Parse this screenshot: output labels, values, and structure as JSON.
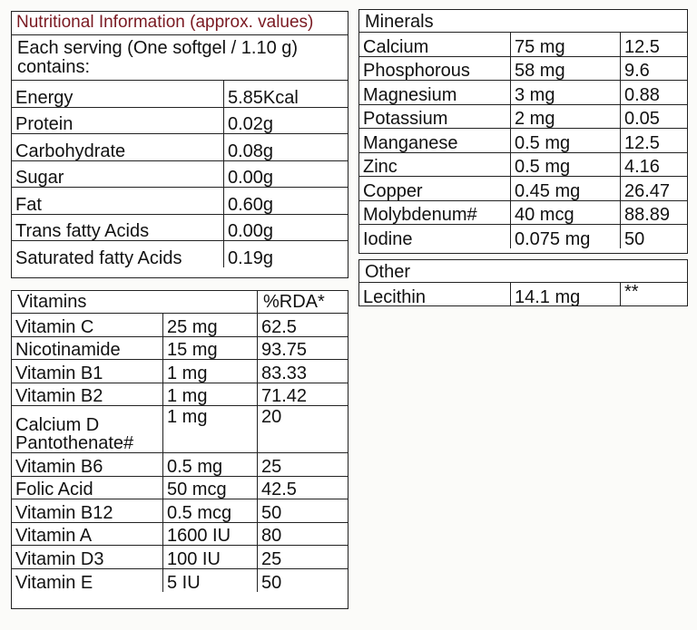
{
  "nutrition": {
    "title": "Nutritional Information (approx. values)",
    "serving": "Each serving (One softgel / 1.10 g) contains:",
    "rows": [
      {
        "name": "Energy",
        "value": "5.85Kcal"
      },
      {
        "name": "Protein",
        "value": "0.02g"
      },
      {
        "name": "Carbohydrate",
        "value": "0.08g"
      },
      {
        "name": "Sugar",
        "value": "0.00g"
      },
      {
        "name": "Fat",
        "value": "0.60g"
      },
      {
        "name": "Trans fatty Acids",
        "value": "0.00g"
      },
      {
        "name": "Saturated fatty Acids",
        "value": "0.19g"
      }
    ]
  },
  "vitamins": {
    "header": "Vitamins",
    "rda_header": "%RDA*",
    "rows": [
      {
        "name": "Vitamin C",
        "amount": "25 mg",
        "rda": "62.5"
      },
      {
        "name": "Nicotinamide",
        "amount": "15 mg",
        "rda": "93.75"
      },
      {
        "name": "Vitamin B1",
        "amount": "1 mg",
        "rda": "83.33"
      },
      {
        "name": "Vitamin B2",
        "amount": "1 mg",
        "rda": "71.42"
      },
      {
        "name": "Calcium D Pantothenate#",
        "amount": "1 mg",
        "rda": "20"
      },
      {
        "name": "Vitamin B6",
        "amount": "0.5 mg",
        "rda": "25"
      },
      {
        "name": "Folic Acid",
        "amount": "50 mcg",
        "rda": "42.5"
      },
      {
        "name": "Vitamin B12",
        "amount": "0.5 mcg",
        "rda": "50"
      },
      {
        "name": "Vitamin A",
        "amount": "1600 IU",
        "rda": "80"
      },
      {
        "name": "Vitamin D3",
        "amount": "100 IU",
        "rda": "25"
      },
      {
        "name": "Vitamin E",
        "amount": "5 IU",
        "rda": "50"
      }
    ]
  },
  "minerals": {
    "header": "Minerals",
    "rows": [
      {
        "name": "Calcium",
        "amount": "75 mg",
        "rda": "12.5"
      },
      {
        "name": "Phosphorous",
        "amount": "58 mg",
        "rda": "9.6"
      },
      {
        "name": "Magnesium",
        "amount": "3 mg",
        "rda": "0.88"
      },
      {
        "name": "Potassium",
        "amount": "2 mg",
        "rda": "0.05"
      },
      {
        "name": "Manganese",
        "amount": "0.5 mg",
        "rda": "12.5"
      },
      {
        "name": "Zinc",
        "amount": "0.5 mg",
        "rda": "4.16"
      },
      {
        "name": "Copper",
        "amount": "0.45 mg",
        "rda": "26.47"
      },
      {
        "name": "Molybdenum#",
        "amount": "40 mcg",
        "rda": "88.89"
      },
      {
        "name": "Iodine",
        "amount": "0.075 mg",
        "rda": "50"
      }
    ]
  },
  "other": {
    "header": "Other",
    "rows": [
      {
        "name": "Lecithin",
        "amount": "14.1 mg",
        "rda": "**"
      }
    ]
  }
}
